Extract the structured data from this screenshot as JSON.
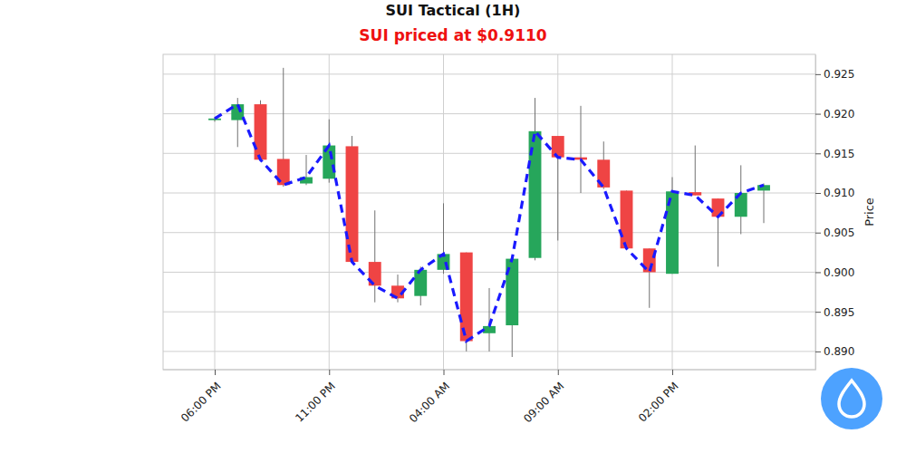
{
  "chart_data": {
    "type": "candlestick",
    "title": "SUI Tactical (1H)",
    "subtitle": "SUI priced at $0.9110",
    "ylabel": "Price",
    "categories": [
      "06:00 PM",
      null,
      null,
      null,
      null,
      "11:00 PM",
      null,
      null,
      null,
      null,
      "04:00 AM",
      null,
      null,
      null,
      null,
      "09:00 AM",
      null,
      null,
      null,
      null,
      "02:00 PM",
      null,
      null,
      null,
      null
    ],
    "open": [
      0.9192,
      0.9192,
      0.9212,
      0.9143,
      0.9112,
      0.9118,
      0.9159,
      0.9013,
      0.8983,
      0.897,
      0.9003,
      0.9025,
      0.8923,
      0.8933,
      0.9018,
      0.9172,
      0.9145,
      0.9142,
      0.9103,
      0.903,
      0.8998,
      0.9101,
      0.9093,
      0.907,
      0.9103
    ],
    "high": [
      0.9195,
      0.922,
      0.9217,
      0.9258,
      0.9148,
      0.9193,
      0.9172,
      0.9078,
      0.8997,
      0.9007,
      0.9087,
      0.9025,
      0.898,
      0.9017,
      0.922,
      0.9172,
      0.921,
      0.9165,
      0.9103,
      0.903,
      0.912,
      0.916,
      0.9093,
      0.9135,
      0.9112
    ],
    "low": [
      0.919,
      0.9158,
      0.9142,
      0.9108,
      0.911,
      0.9113,
      0.9012,
      0.8962,
      0.8962,
      0.8958,
      0.8998,
      0.89,
      0.89,
      0.8893,
      0.9015,
      0.904,
      0.91,
      0.9105,
      0.903,
      0.8955,
      0.8998,
      0.9097,
      0.9007,
      0.9048,
      0.9062
    ],
    "close": [
      0.9194,
      0.9212,
      0.9142,
      0.911,
      0.912,
      0.916,
      0.9013,
      0.8983,
      0.8967,
      0.9003,
      0.9023,
      0.8913,
      0.8932,
      0.9017,
      0.9178,
      0.9145,
      0.9142,
      0.9107,
      0.903,
      0.9,
      0.9102,
      0.9097,
      0.907,
      0.91,
      0.911
    ],
    "colors": [
      "#26a65b",
      "#26a65b",
      "#ef4444",
      "#ef4444",
      "#26a65b",
      "#26a65b",
      "#ef4444",
      "#ef4444",
      "#ef4444",
      "#26a65b",
      "#26a65b",
      "#ef4444",
      "#26a65b",
      "#26a65b",
      "#26a65b",
      "#ef4444",
      "#ef4444",
      "#ef4444",
      "#ef4444",
      "#ef4444",
      "#26a65b",
      "#ef4444",
      "#ef4444",
      "#26a65b",
      "#26a65b"
    ],
    "color": "#1a1aff",
    "line_style": "dashed",
    "ylim": [
      0.8877,
      0.9275
    ],
    "yticks": [
      {
        "value": 0.89,
        "label": "0.890"
      },
      {
        "value": 0.895,
        "label": "0.895"
      },
      {
        "value": 0.9,
        "label": "0.900"
      },
      {
        "value": 0.905,
        "label": "0.905"
      },
      {
        "value": 0.91,
        "label": "0.910"
      },
      {
        "value": 0.915,
        "label": "0.915"
      },
      {
        "value": 0.92,
        "label": "0.920"
      },
      {
        "value": 0.925,
        "label": "0.925"
      }
    ],
    "grid": true
  }
}
